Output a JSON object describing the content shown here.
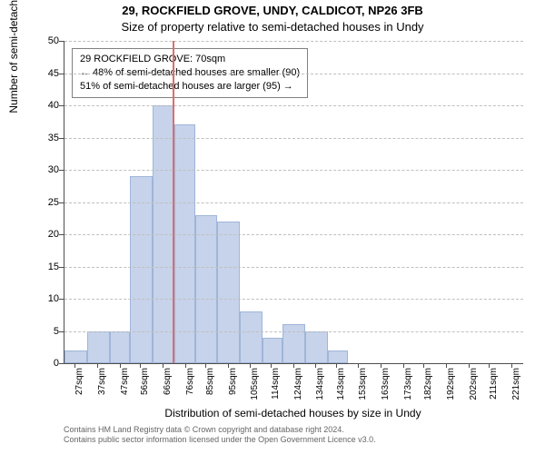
{
  "title_line1": "29, ROCKFIELD GROVE, UNDY, CALDICOT, NP26 3FB",
  "title_line2": "Size of property relative to semi-detached houses in Undy",
  "y_axis_title": "Number of semi-detached properties",
  "x_axis_title": "Distribution of semi-detached houses by size in Undy",
  "copyright_line1": "Contains HM Land Registry data © Crown copyright and database right 2024.",
  "copyright_line2": "Contains public sector information licensed under the Open Government Licence v3.0.",
  "annotation": {
    "line1": "29 ROCKFIELD GROVE: 70sqm",
    "line2": "← 48% of semi-detached houses are smaller (90)",
    "line3": "51% of semi-detached houses are larger (95) →"
  },
  "chart": {
    "type": "histogram",
    "ylim": [
      0,
      50
    ],
    "ytick_step": 5,
    "xlim": [
      22,
      226
    ],
    "x_ticks": [
      27,
      37,
      47,
      56,
      66,
      76,
      85,
      95,
      105,
      114,
      124,
      134,
      143,
      153,
      163,
      173,
      182,
      192,
      202,
      211,
      221
    ],
    "x_tick_suffix": "sqm",
    "marker_x": 70,
    "bar_color": "#c6d3ea",
    "bar_border_color": "#9fb5d9",
    "marker_color": "#d96f6f",
    "grid_color": "#bfbfbf",
    "axis_color": "#4d4d4d",
    "background_color": "#ffffff",
    "title_fontsize": 13,
    "label_fontsize": 12,
    "tick_fontsize": 11,
    "annotation_fontsize": 11,
    "copyright_fontsize": 9,
    "bars": [
      {
        "x0": 22,
        "x1": 32,
        "y": 2
      },
      {
        "x0": 32,
        "x1": 42,
        "y": 5
      },
      {
        "x0": 42,
        "x1": 51,
        "y": 5
      },
      {
        "x0": 51,
        "x1": 61,
        "y": 29
      },
      {
        "x0": 61,
        "x1": 71,
        "y": 40
      },
      {
        "x0": 71,
        "x1": 80,
        "y": 37
      },
      {
        "x0": 80,
        "x1": 90,
        "y": 23
      },
      {
        "x0": 90,
        "x1": 100,
        "y": 22
      },
      {
        "x0": 100,
        "x1": 110,
        "y": 8
      },
      {
        "x0": 110,
        "x1": 119,
        "y": 4
      },
      {
        "x0": 119,
        "x1": 129,
        "y": 6
      },
      {
        "x0": 129,
        "x1": 139,
        "y": 5
      },
      {
        "x0": 139,
        "x1": 148,
        "y": 2
      },
      {
        "x0": 148,
        "x1": 158,
        "y": 0
      },
      {
        "x0": 158,
        "x1": 168,
        "y": 0
      },
      {
        "x0": 168,
        "x1": 178,
        "y": 0
      },
      {
        "x0": 178,
        "x1": 187,
        "y": 0
      },
      {
        "x0": 187,
        "x1": 197,
        "y": 0
      },
      {
        "x0": 197,
        "x1": 207,
        "y": 0
      },
      {
        "x0": 207,
        "x1": 216,
        "y": 0
      },
      {
        "x0": 216,
        "x1": 226,
        "y": 0
      }
    ]
  }
}
